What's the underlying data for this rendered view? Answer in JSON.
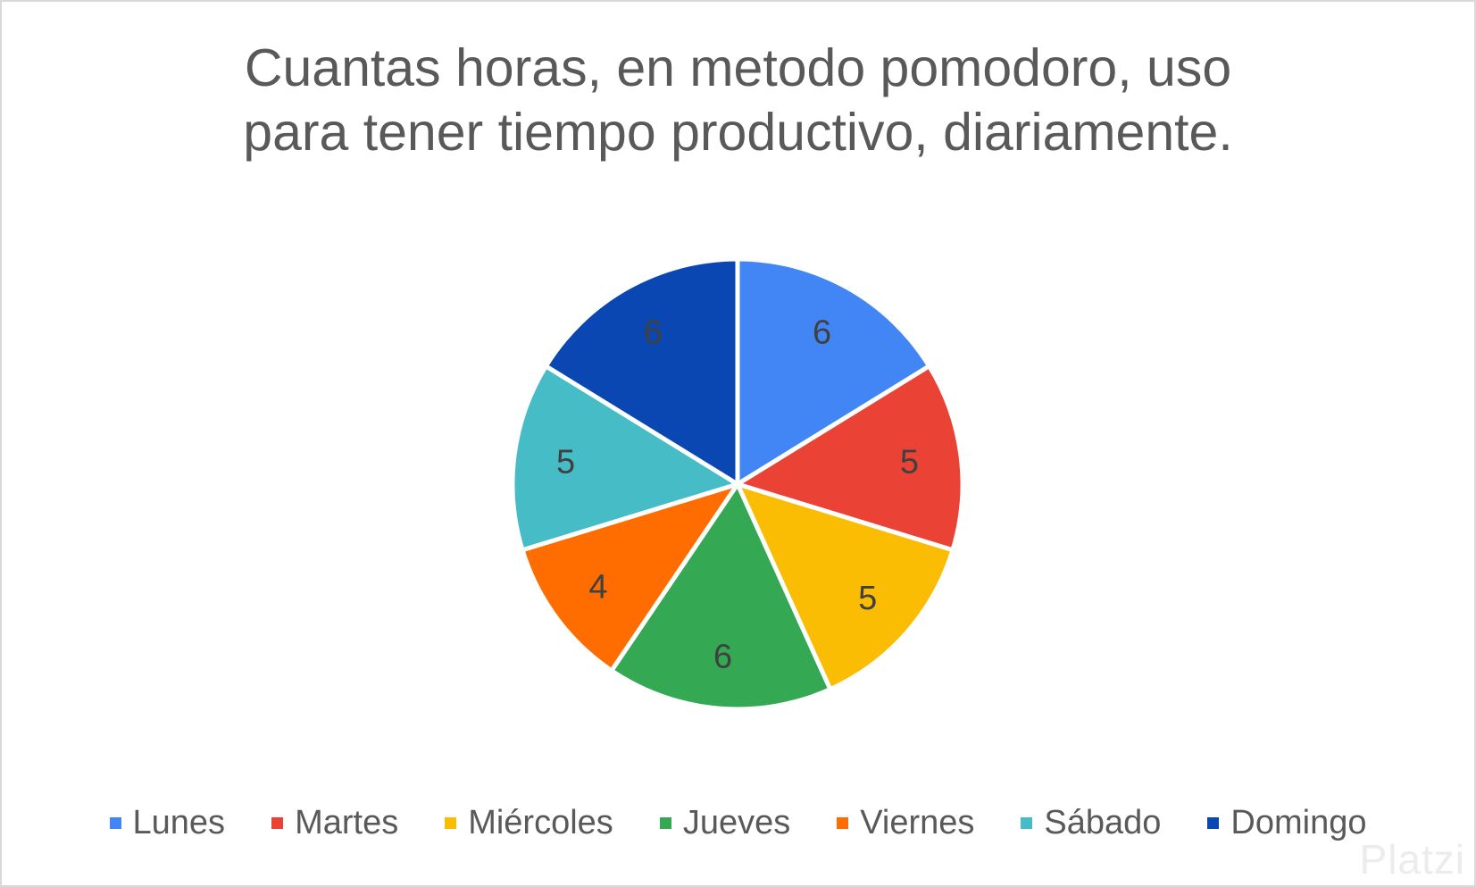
{
  "chart_data": {
    "type": "pie",
    "title_lines": [
      "Cuantas horas, en metodo pomodoro, uso",
      "para tener tiempo productivo, diariamente."
    ],
    "categories": [
      "Lunes",
      "Martes",
      "Miércoles",
      "Jueves",
      "Viernes",
      "Sábado",
      "Domingo"
    ],
    "values": [
      6,
      5,
      5,
      6,
      4,
      5,
      6
    ],
    "colors": [
      "#4285F4",
      "#EA4335",
      "#FBBC04",
      "#34A853",
      "#FF6D01",
      "#46BDC6",
      "#0B47B2"
    ],
    "legend_position": "bottom",
    "data_labels": "value"
  },
  "watermark": {
    "text": "Platzi",
    "icon": "platzi-logo-icon"
  }
}
